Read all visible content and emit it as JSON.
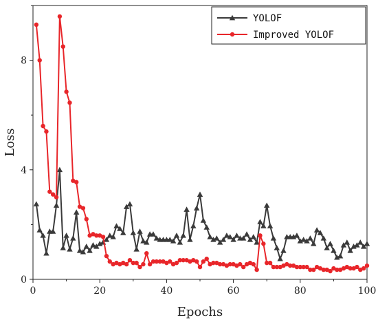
{
  "chart_data": {
    "type": "line",
    "title": "",
    "xlabel": "Epochs",
    "ylabel": "Loss",
    "xlim": [
      0,
      100
    ],
    "ylim": [
      0,
      10
    ],
    "xticks": [
      0,
      20,
      40,
      60,
      80,
      100
    ],
    "yticks": [
      0,
      4,
      8
    ],
    "legend_position": "top-right",
    "grid": false,
    "series": [
      {
        "name": "YOLOF",
        "color": "#3a3a3a",
        "marker": "triangle",
        "x": [
          1,
          2,
          3,
          4,
          5,
          6,
          7,
          8,
          9,
          10,
          11,
          12,
          13,
          14,
          15,
          16,
          17,
          18,
          19,
          20,
          21,
          22,
          23,
          24,
          25,
          26,
          27,
          28,
          29,
          30,
          31,
          32,
          33,
          34,
          35,
          36,
          37,
          38,
          39,
          40,
          41,
          42,
          43,
          44,
          45,
          46,
          47,
          48,
          49,
          50,
          51,
          52,
          53,
          54,
          55,
          56,
          57,
          58,
          59,
          60,
          61,
          62,
          63,
          64,
          65,
          66,
          67,
          68,
          69,
          70,
          71,
          72,
          73,
          74,
          75,
          76,
          77,
          78,
          79,
          80,
          81,
          82,
          83,
          84,
          85,
          86,
          87,
          88,
          89,
          90,
          91,
          92,
          93,
          94,
          95,
          96,
          97,
          98,
          99,
          100
        ],
        "values": [
          2.75,
          1.8,
          1.6,
          0.95,
          1.75,
          1.75,
          2.7,
          4.0,
          1.15,
          1.6,
          1.1,
          1.5,
          2.45,
          1.05,
          1.0,
          1.2,
          1.05,
          1.25,
          1.2,
          1.3,
          1.35,
          1.45,
          1.6,
          1.55,
          1.95,
          1.85,
          1.7,
          2.65,
          2.75,
          1.7,
          1.1,
          1.75,
          1.4,
          1.35,
          1.65,
          1.65,
          1.5,
          1.45,
          1.45,
          1.45,
          1.45,
          1.4,
          1.6,
          1.35,
          1.6,
          2.55,
          1.45,
          1.95,
          2.6,
          3.1,
          2.15,
          1.9,
          1.55,
          1.45,
          1.5,
          1.35,
          1.45,
          1.6,
          1.55,
          1.45,
          1.6,
          1.5,
          1.5,
          1.65,
          1.45,
          1.55,
          1.35,
          2.1,
          1.95,
          2.7,
          1.95,
          1.5,
          1.15,
          0.75,
          1.05,
          1.55,
          1.55,
          1.55,
          1.6,
          1.4,
          1.45,
          1.4,
          1.5,
          1.3,
          1.8,
          1.7,
          1.5,
          1.15,
          1.3,
          1.05,
          0.8,
          0.85,
          1.25,
          1.35,
          1.05,
          1.2,
          1.25,
          1.35,
          1.2,
          1.3
        ]
      },
      {
        "name": "Improved YOLOF",
        "color": "#e8262a",
        "marker": "circle",
        "x": [
          1,
          2,
          3,
          4,
          5,
          6,
          7,
          8,
          9,
          10,
          11,
          12,
          13,
          14,
          15,
          16,
          17,
          18,
          19,
          20,
          21,
          22,
          23,
          24,
          25,
          26,
          27,
          28,
          29,
          30,
          31,
          32,
          33,
          34,
          35,
          36,
          37,
          38,
          39,
          40,
          41,
          42,
          43,
          44,
          45,
          46,
          47,
          48,
          49,
          50,
          51,
          52,
          53,
          54,
          55,
          56,
          57,
          58,
          59,
          60,
          61,
          62,
          63,
          64,
          65,
          66,
          67,
          68,
          69,
          70,
          71,
          72,
          73,
          74,
          75,
          76,
          77,
          78,
          79,
          80,
          81,
          82,
          83,
          84,
          85,
          86,
          87,
          88,
          89,
          90,
          91,
          92,
          93,
          94,
          95,
          96,
          97,
          98,
          99,
          100
        ],
        "values": [
          9.3,
          8.0,
          5.6,
          5.4,
          3.2,
          3.1,
          3.0,
          9.6,
          8.5,
          6.85,
          6.45,
          3.6,
          3.55,
          2.65,
          2.6,
          2.2,
          1.6,
          1.65,
          1.6,
          1.6,
          1.55,
          0.85,
          0.65,
          0.55,
          0.6,
          0.55,
          0.6,
          0.55,
          0.7,
          0.6,
          0.6,
          0.45,
          0.55,
          0.95,
          0.55,
          0.65,
          0.65,
          0.65,
          0.65,
          0.6,
          0.65,
          0.55,
          0.6,
          0.7,
          0.7,
          0.7,
          0.65,
          0.7,
          0.65,
          0.45,
          0.65,
          0.75,
          0.55,
          0.6,
          0.6,
          0.55,
          0.55,
          0.5,
          0.55,
          0.55,
          0.5,
          0.55,
          0.45,
          0.55,
          0.6,
          0.55,
          0.35,
          1.6,
          1.3,
          0.6,
          0.6,
          0.45,
          0.45,
          0.45,
          0.5,
          0.55,
          0.5,
          0.5,
          0.45,
          0.45,
          0.45,
          0.45,
          0.35,
          0.35,
          0.45,
          0.4,
          0.35,
          0.35,
          0.3,
          0.4,
          0.35,
          0.35,
          0.4,
          0.45,
          0.4,
          0.4,
          0.45,
          0.35,
          0.4,
          0.5
        ]
      }
    ]
  }
}
